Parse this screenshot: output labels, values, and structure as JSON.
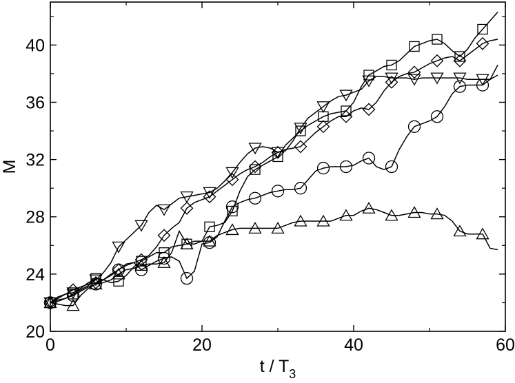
{
  "chart_data": {
    "type": "line",
    "xlabel": "t / T",
    "xlabel_sub": "3",
    "ylabel": "M",
    "xlim": [
      0,
      60
    ],
    "ylim": [
      20,
      43
    ],
    "xticks": [
      0,
      20,
      40,
      60
    ],
    "xtick_labels": [
      "0",
      "20",
      "40",
      "60"
    ],
    "yticks": [
      20,
      24,
      28,
      32,
      36,
      40
    ],
    "ytick_labels": [
      "20",
      "24",
      "28",
      "32",
      "36",
      "40"
    ],
    "grid": false,
    "legend": "none",
    "marker_every": 3,
    "series": [
      {
        "marker": "square",
        "x": [
          0,
          1,
          2,
          3,
          4,
          5,
          6,
          7,
          8,
          9,
          10,
          11,
          12,
          13,
          14,
          15,
          16,
          17,
          18,
          19,
          20,
          21,
          22,
          23,
          24,
          25,
          26,
          27,
          28,
          29,
          30,
          31,
          32,
          33,
          34,
          35,
          36,
          37,
          38,
          39,
          40,
          41,
          42,
          43,
          44,
          45,
          46,
          47,
          48,
          49,
          50,
          51,
          52,
          53,
          54,
          55,
          56,
          57,
          58,
          59
        ],
        "y": [
          22.0,
          22.2,
          22.3,
          22.6,
          22.9,
          23.2,
          23.7,
          23.6,
          23.4,
          23.5,
          23.9,
          24.5,
          24.9,
          25.2,
          25.5,
          25.5,
          25.9,
          26.0,
          26.1,
          26.1,
          26.3,
          27.3,
          27.4,
          27.6,
          28.4,
          29.8,
          30.8,
          31.3,
          31.6,
          31.9,
          32.2,
          33.0,
          33.5,
          34.0,
          34.4,
          34.7,
          35.0,
          35.2,
          35.3,
          35.4,
          36.0,
          37.1,
          37.9,
          38.2,
          38.5,
          38.6,
          38.9,
          39.4,
          39.9,
          40.1,
          40.3,
          40.4,
          40.1,
          39.6,
          39.2,
          39.7,
          40.5,
          41.1,
          41.7,
          42.3
        ]
      },
      {
        "marker": "diamond",
        "x": [
          0,
          1,
          2,
          3,
          4,
          5,
          6,
          7,
          8,
          9,
          10,
          11,
          12,
          13,
          14,
          15,
          16,
          17,
          18,
          19,
          20,
          21,
          22,
          23,
          24,
          25,
          26,
          27,
          28,
          29,
          30,
          31,
          32,
          33,
          34,
          35,
          36,
          37,
          38,
          39,
          40,
          41,
          42,
          43,
          44,
          45,
          46,
          47,
          48,
          49,
          50,
          51,
          52,
          53,
          54,
          55,
          56,
          57,
          58,
          59
        ],
        "y": [
          22.0,
          22.3,
          22.6,
          22.9,
          23.1,
          23.3,
          23.4,
          23.6,
          23.9,
          24.3,
          24.6,
          24.8,
          25.0,
          25.3,
          25.9,
          26.7,
          27.2,
          27.6,
          28.6,
          29.0,
          29.2,
          29.4,
          29.8,
          30.2,
          30.6,
          31.0,
          31.3,
          31.5,
          31.8,
          32.2,
          32.5,
          32.7,
          32.8,
          32.9,
          33.4,
          33.9,
          34.3,
          34.7,
          35.0,
          35.0,
          35.4,
          35.6,
          35.5,
          36.0,
          36.8,
          37.4,
          37.8,
          38.0,
          38.1,
          38.4,
          38.7,
          38.9,
          39.1,
          39.2,
          38.9,
          39.3,
          39.7,
          40.1,
          40.3,
          40.4
        ]
      },
      {
        "marker": "triangle-down",
        "x": [
          0,
          1,
          2,
          3,
          4,
          5,
          6,
          7,
          8,
          9,
          10,
          11,
          12,
          13,
          14,
          15,
          16,
          17,
          18,
          19,
          20,
          21,
          22,
          23,
          24,
          25,
          26,
          27,
          28,
          29,
          30,
          31,
          32,
          33,
          34,
          35,
          36,
          37,
          38,
          39,
          40,
          41,
          42,
          43,
          44,
          45,
          46,
          47,
          48,
          49,
          50,
          51,
          52,
          53,
          54,
          55,
          56,
          57,
          58,
          59
        ],
        "y": [
          22.0,
          22.4,
          22.6,
          22.7,
          23.0,
          23.4,
          23.6,
          24.1,
          24.8,
          25.9,
          26.4,
          26.9,
          27.4,
          28.3,
          28.8,
          28.5,
          28.9,
          29.3,
          29.4,
          29.5,
          29.6,
          29.7,
          30.0,
          30.5,
          31.1,
          31.8,
          32.4,
          32.8,
          32.9,
          32.8,
          32.5,
          32.6,
          33.3,
          34.2,
          34.9,
          35.3,
          35.7,
          36.1,
          36.4,
          36.5,
          36.7,
          36.9,
          37.5,
          37.8,
          37.8,
          37.7,
          37.7,
          37.7,
          37.6,
          37.7,
          37.7,
          37.7,
          37.7,
          37.7,
          37.7,
          37.6,
          37.6,
          37.6,
          37.6,
          37.9
        ]
      },
      {
        "marker": "circle",
        "x": [
          0,
          1,
          2,
          3,
          4,
          5,
          6,
          7,
          8,
          9,
          10,
          11,
          12,
          13,
          14,
          15,
          16,
          17,
          18,
          19,
          20,
          21,
          22,
          23,
          24,
          25,
          26,
          27,
          28,
          29,
          30,
          31,
          32,
          33,
          34,
          35,
          36,
          37,
          38,
          39,
          40,
          41,
          42,
          43,
          44,
          45,
          46,
          47,
          48,
          49,
          50,
          51,
          52,
          53,
          54,
          55,
          56,
          57,
          58,
          59
        ],
        "y": [
          22.0,
          22.1,
          22.3,
          22.5,
          22.8,
          23.1,
          23.3,
          23.6,
          24.0,
          24.3,
          24.7,
          24.8,
          24.3,
          24.6,
          24.9,
          25.1,
          25.2,
          24.9,
          23.7,
          24.2,
          26.1,
          26.2,
          26.6,
          27.7,
          28.7,
          29.0,
          29.2,
          29.3,
          29.5,
          29.7,
          29.8,
          29.9,
          29.9,
          30.0,
          30.6,
          31.2,
          31.4,
          31.5,
          31.5,
          31.5,
          31.6,
          31.9,
          32.1,
          31.5,
          31.3,
          31.5,
          32.7,
          33.6,
          34.3,
          34.5,
          34.7,
          35.0,
          35.7,
          36.6,
          37.1,
          37.2,
          37.2,
          37.2,
          37.6,
          38.6
        ]
      },
      {
        "marker": "triangle-up",
        "x": [
          0,
          1,
          2,
          3,
          4,
          5,
          6,
          7,
          8,
          9,
          10,
          11,
          12,
          13,
          14,
          15,
          16,
          17,
          18,
          19,
          20,
          21,
          22,
          23,
          24,
          25,
          26,
          27,
          28,
          29,
          30,
          31,
          32,
          33,
          34,
          35,
          36,
          37,
          38,
          39,
          40,
          41,
          42,
          43,
          44,
          45,
          46,
          47,
          48,
          49,
          50,
          51,
          52,
          53,
          54,
          55,
          56,
          57,
          58,
          59
        ],
        "y": [
          22.0,
          21.9,
          21.8,
          21.8,
          22.5,
          23.0,
          23.3,
          23.4,
          23.6,
          24.0,
          24.3,
          24.4,
          24.6,
          24.7,
          24.7,
          24.8,
          25.5,
          27.0,
          26.1,
          26.3,
          26.3,
          26.3,
          26.7,
          26.9,
          27.1,
          27.2,
          27.2,
          27.2,
          27.2,
          27.2,
          27.2,
          27.4,
          27.6,
          27.7,
          27.7,
          27.7,
          27.7,
          27.7,
          27.9,
          28.1,
          28.1,
          28.4,
          28.6,
          28.5,
          28.3,
          28.1,
          28.1,
          28.2,
          28.3,
          28.3,
          28.2,
          28.2,
          28.1,
          27.7,
          27.0,
          26.8,
          26.8,
          26.8,
          25.8,
          25.7
        ]
      }
    ]
  }
}
